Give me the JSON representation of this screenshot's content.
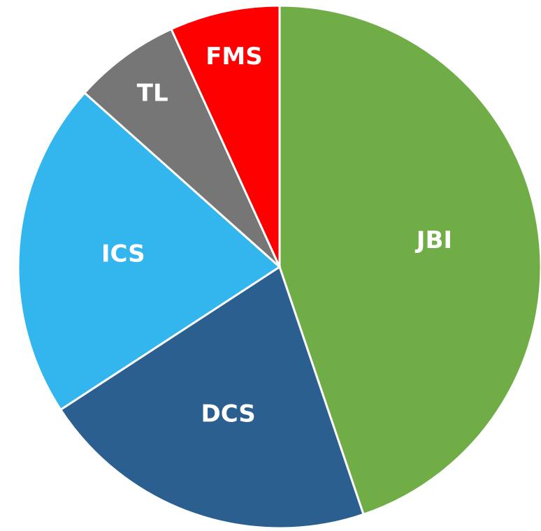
{
  "chart_data": {
    "type": "pie",
    "categories": [
      "JBI",
      "DCS",
      "ICS",
      "TL",
      "FMS"
    ],
    "values": [
      44.8,
      21,
      20.8,
      6.6,
      6.8
    ],
    "colors": [
      "#70ad47",
      "#2a5f8f",
      "#33b5ee",
      "#767676",
      "#ff0000"
    ]
  }
}
